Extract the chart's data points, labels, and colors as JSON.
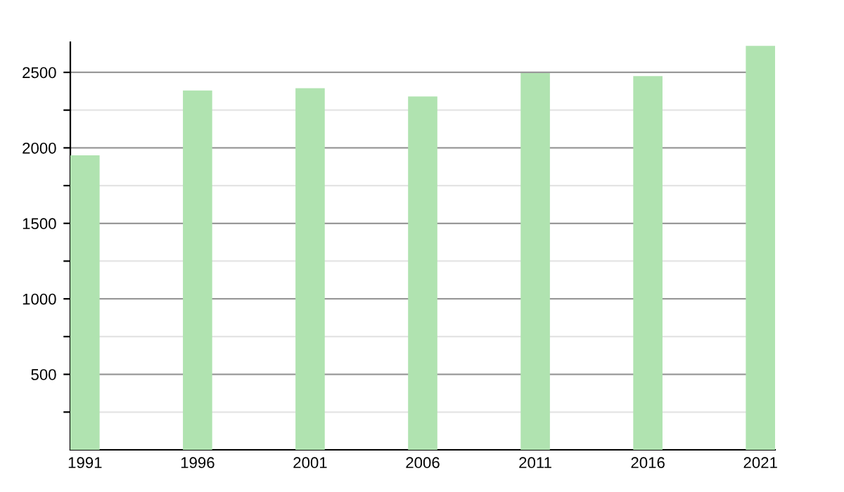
{
  "chart_data": {
    "type": "bar",
    "categories": [
      "1991",
      "1996",
      "2001",
      "2006",
      "2011",
      "2016",
      "2021"
    ],
    "values": [
      1950,
      2380,
      2395,
      2340,
      2495,
      2475,
      2675
    ],
    "color": "#b0e3b0",
    "ylim": [
      0,
      2700
    ],
    "yticks": [
      {
        "value": 250,
        "label": null
      },
      500,
      {
        "value": 750,
        "label": null
      },
      1000,
      {
        "value": 1250,
        "label": null
      },
      1500,
      {
        "value": 1750,
        "label": null
      },
      2000,
      {
        "value": 2250,
        "label": null
      },
      2500
    ],
    "grid": "y",
    "legend": false
  }
}
